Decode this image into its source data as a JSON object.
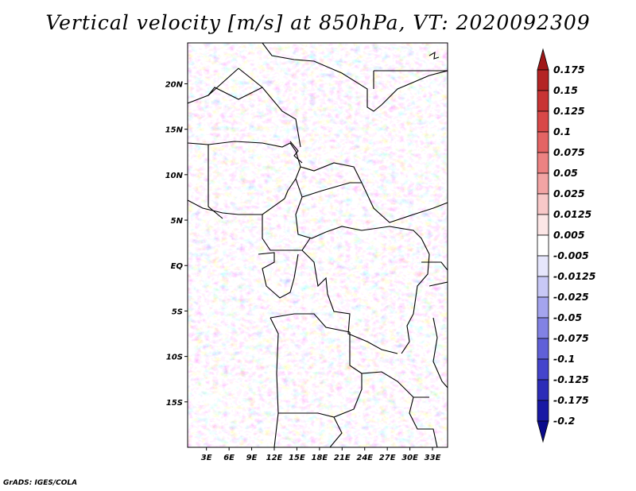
{
  "title": "Vertical velocity [m/s] at 850hPa, VT: 2020092309",
  "credit": "GrADS: IGES/COLA",
  "map": {
    "lat_labels": [
      "20N",
      "15N",
      "10N",
      "5N",
      "EQ",
      "5S",
      "10S",
      "15S"
    ],
    "lat_values": [
      20,
      15,
      10,
      5,
      0,
      -5,
      -10,
      -15
    ],
    "lon_labels": [
      "3E",
      "6E",
      "9E",
      "12E",
      "15E",
      "18E",
      "21E",
      "24E",
      "27E",
      "30E",
      "33E"
    ],
    "lon_values": [
      3,
      6,
      9,
      12,
      15,
      18,
      21,
      24,
      27,
      30,
      33
    ],
    "lon_range": [
      0.5,
      35
    ],
    "lat_range": [
      -20,
      24.5
    ]
  },
  "colorbar": {
    "labels": [
      "0.175",
      "0.15",
      "0.125",
      "0.1",
      "0.075",
      "0.05",
      "0.025",
      "0.0125",
      "0.005",
      "-0.005",
      "-0.0125",
      "-0.025",
      "-0.05",
      "-0.075",
      "-0.1",
      "-0.125",
      "-0.175",
      "-0.2"
    ],
    "colors": [
      "#a01818",
      "#b42424",
      "#c83434",
      "#d84848",
      "#e46464",
      "#ec8282",
      "#f2a4a4",
      "#f8c8c8",
      "#fce6e6",
      "#ffffff",
      "#e6e6fc",
      "#c8c8f6",
      "#a4a4ee",
      "#8282e4",
      "#6060d8",
      "#4444cc",
      "#2c2cb8",
      "#1818a4",
      "#0a0a8c"
    ]
  }
}
